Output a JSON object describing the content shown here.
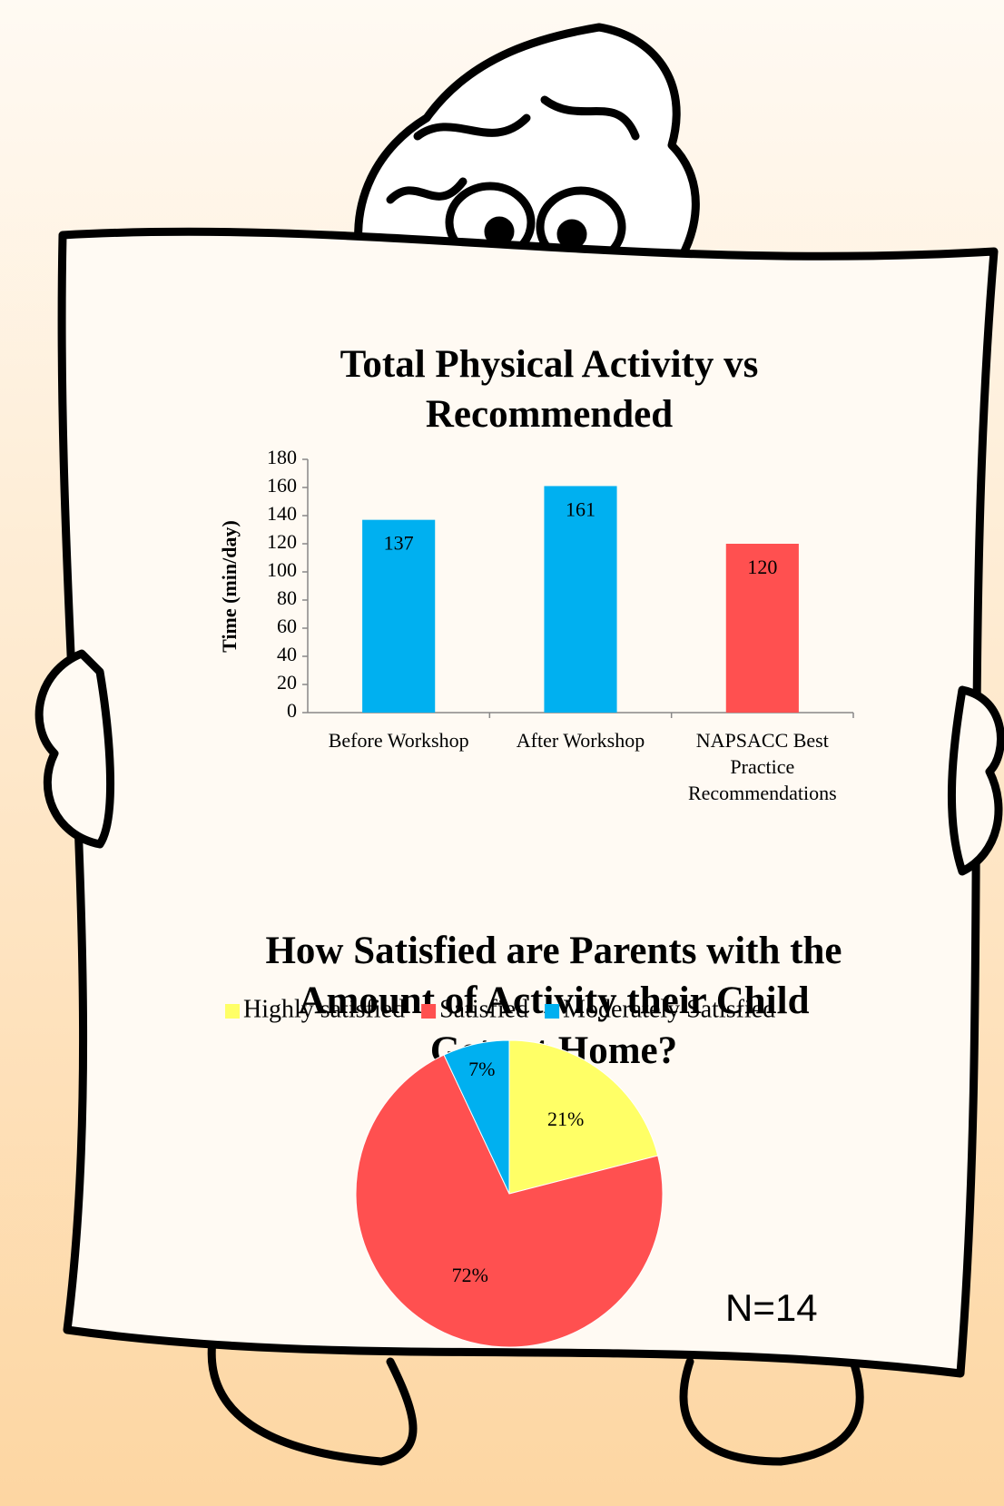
{
  "chart_data": [
    {
      "type": "bar",
      "title": "Total Physical Activity vs Recommended",
      "y_label": "Time (min/day)",
      "categories": [
        "Before Workshop",
        "After Workshop",
        "NAPSACC Best Practice Recommendations"
      ],
      "values": [
        137,
        161,
        120
      ],
      "colors": [
        "#00b0f0",
        "#00b0f0",
        "#ff5050"
      ],
      "ylim": [
        0,
        180
      ],
      "yticks": [
        0,
        20,
        40,
        60,
        80,
        100,
        120,
        140,
        160,
        180
      ],
      "grid": false
    },
    {
      "type": "pie",
      "title": "How Satisfied are Parents with the Amount of Activity their Child Gets at Home?",
      "categories": [
        "Highly satisfied",
        "Satisfied",
        "Moderately Satisfied"
      ],
      "values": [
        21,
        72,
        7
      ],
      "value_labels": [
        "21%",
        "72%",
        "7%"
      ],
      "colors": [
        "#ffff66",
        "#ff5050",
        "#00b0f0"
      ],
      "annotation": "N=14",
      "legend": "top"
    }
  ]
}
